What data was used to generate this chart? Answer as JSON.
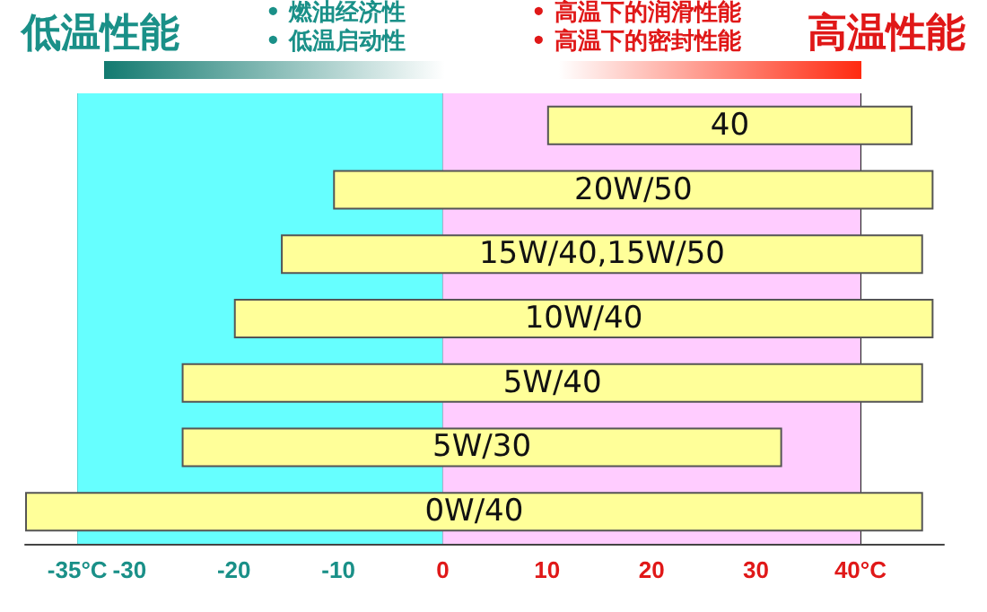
{
  "chart_data": {
    "type": "bar",
    "orientation": "horizontal",
    "stacked": true,
    "categories": [
      "40",
      "20W/50",
      "15W/40,15W/50",
      "10W/40",
      "5W/40",
      "5W/30",
      "0W/40"
    ],
    "base": [
      10,
      -10.5,
      -15.5,
      -20,
      -25,
      -25,
      -40
    ],
    "values": [
      35,
      57.5,
      61.5,
      67,
      71,
      57.5,
      86
    ],
    "color": "#ffff99",
    "xlim": [
      -40,
      48
    ],
    "xticks": [
      {
        "value": -35,
        "label": "-35°C"
      },
      -30,
      -20,
      -10,
      0,
      10,
      20,
      30,
      {
        "value": 40,
        "label": "40°C"
      }
    ],
    "grid": "x",
    "bands": [
      {
        "axis": "x",
        "from": -35,
        "to": 0,
        "color": "#66ffff"
      },
      {
        "axis": "x",
        "from": 0,
        "to": 40,
        "color": "#ffccff"
      }
    ],
    "annotations": [
      "低温性能",
      "• 燃油经济性",
      "• 低温启动性",
      "• 高温下的润滑性能",
      "• 高温下的密封性能",
      "高温性能"
    ]
  }
}
